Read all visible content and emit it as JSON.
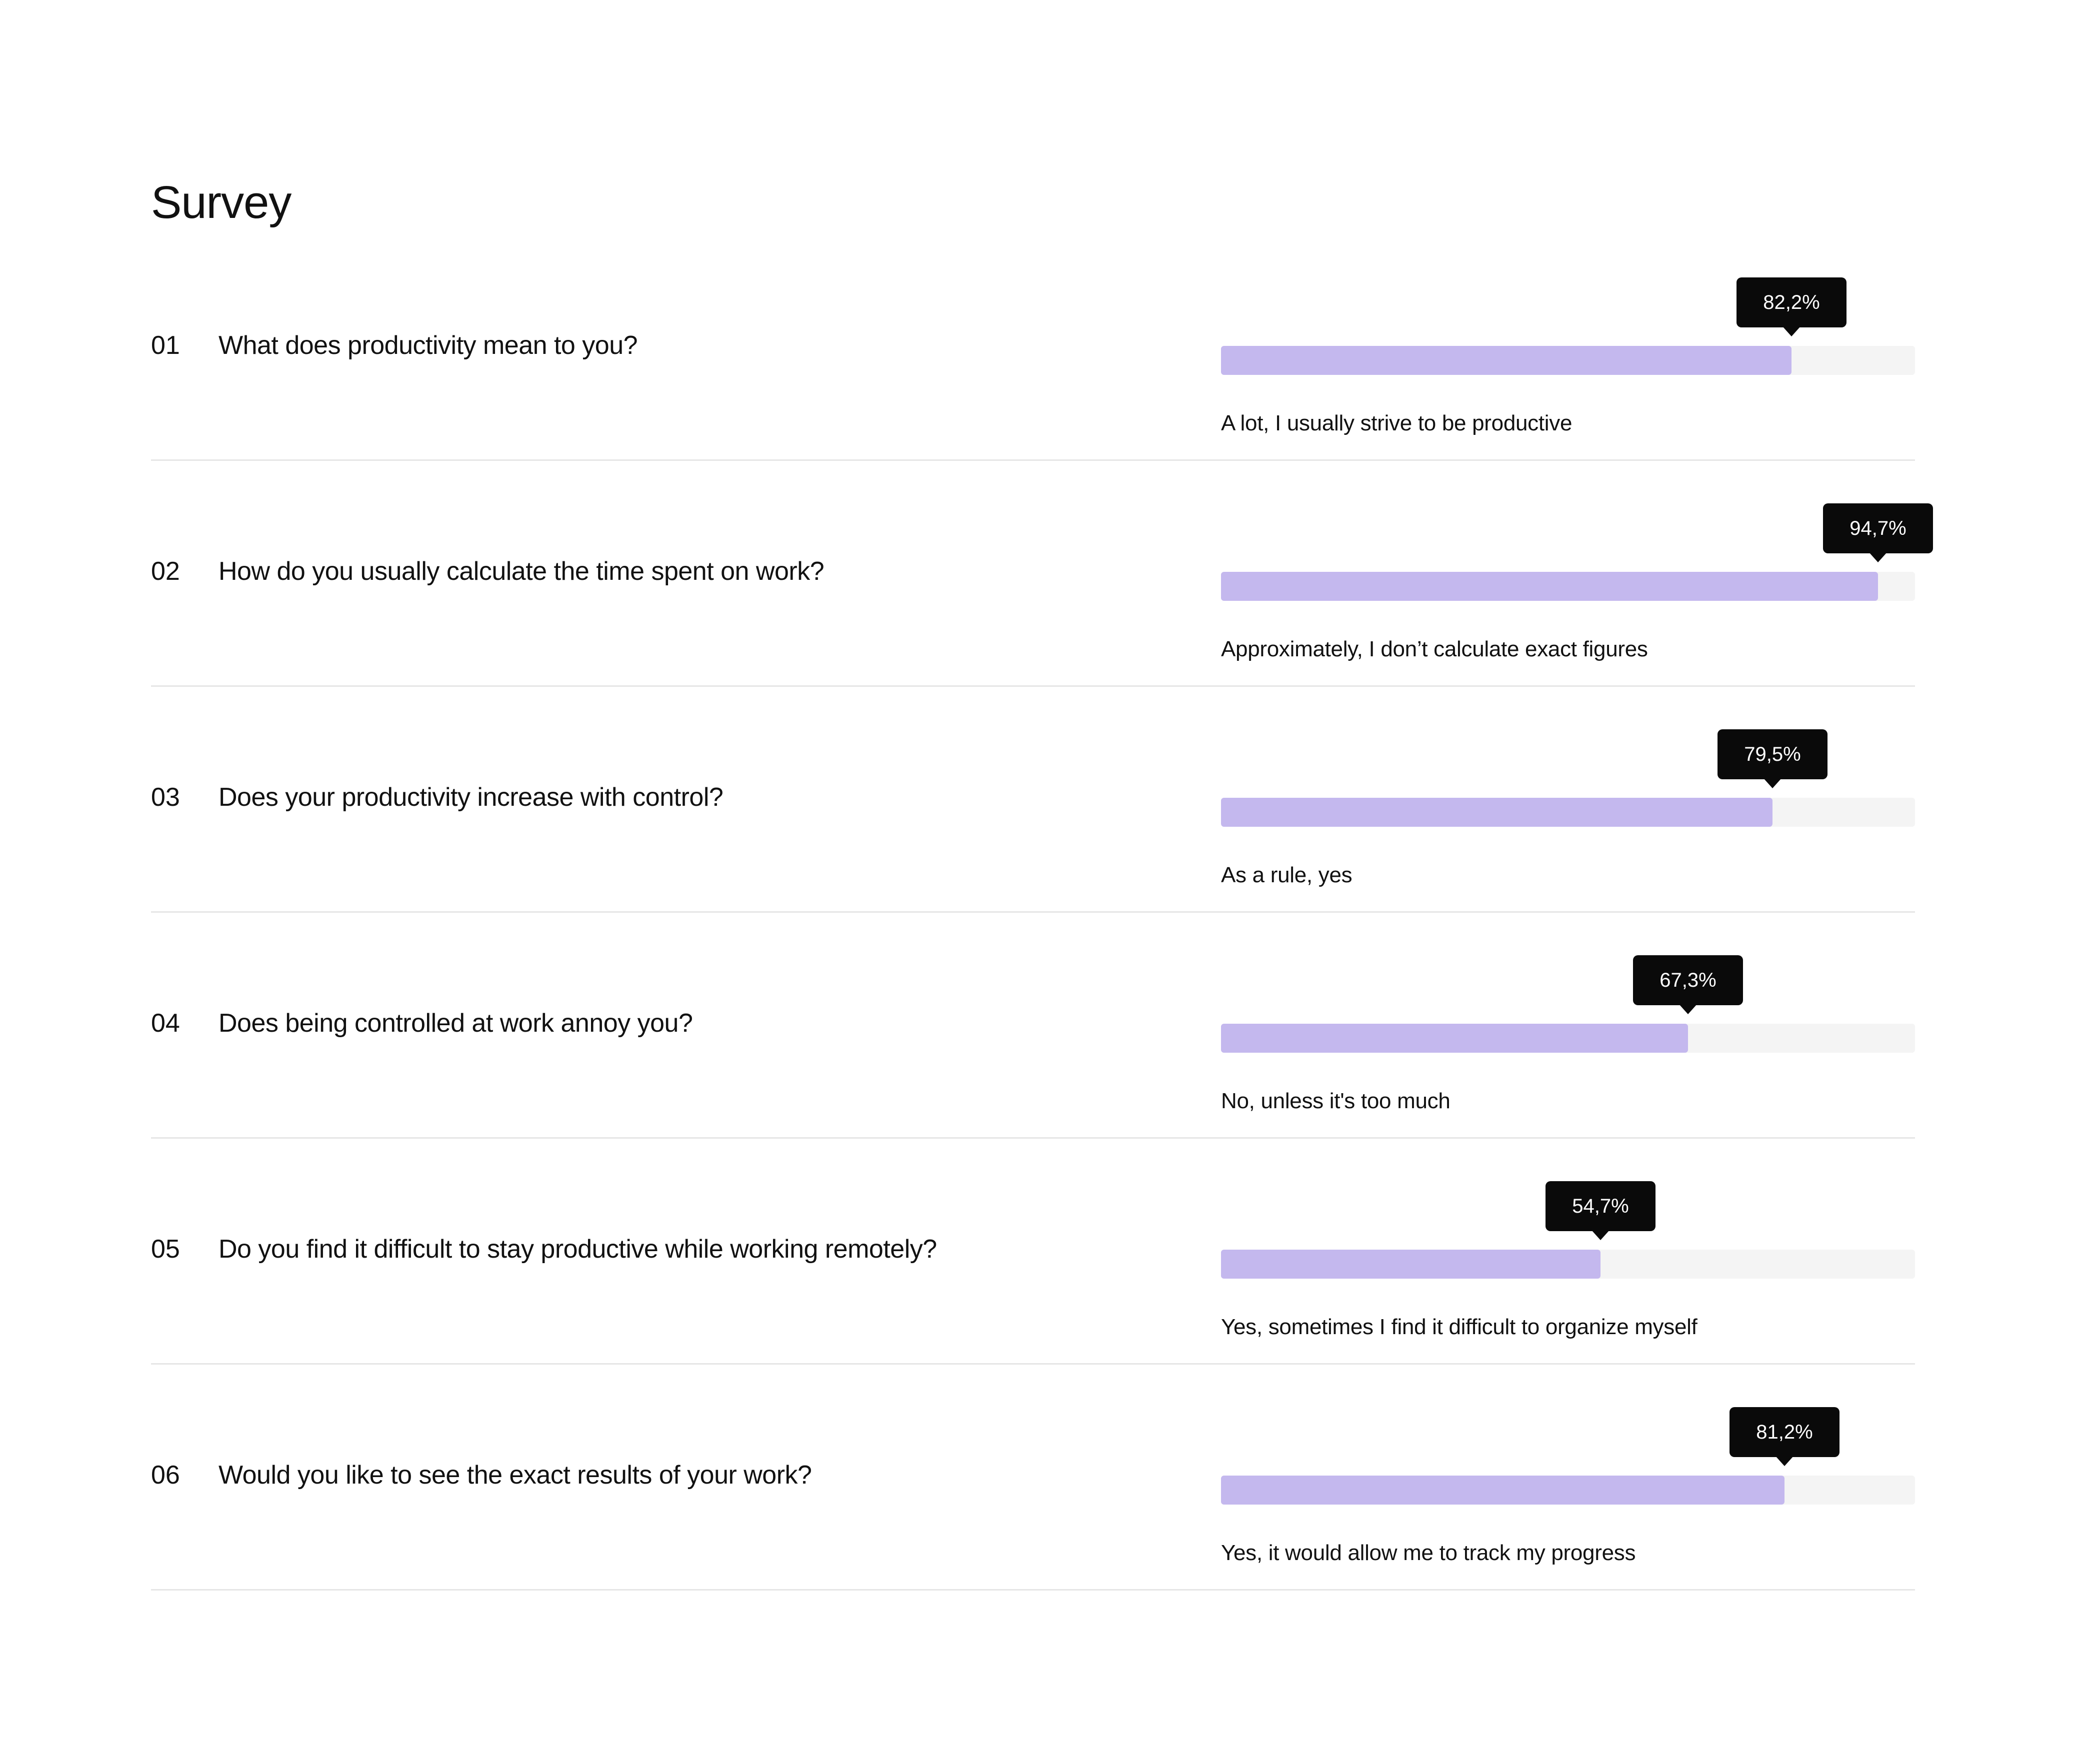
{
  "page": {
    "title": "Survey"
  },
  "colors": {
    "bar_fill": "#c4b8ee",
    "bar_track": "#f4f4f4",
    "tooltip_bg": "#0a0a0a",
    "divider": "#e6e6e6"
  },
  "chart_data": {
    "type": "bar",
    "orientation": "horizontal",
    "title": "Survey",
    "xlim": [
      0,
      100
    ],
    "unit": "%",
    "rows": [
      {
        "number": "01",
        "question": "What does productivity mean to you?",
        "answer": "A lot, I usually strive to be productive",
        "value": 82.2,
        "value_label": "82,2%"
      },
      {
        "number": "02",
        "question": "How do you usually calculate the time spent on work?",
        "answer": "Approximately, I don’t calculate exact figures",
        "value": 94.7,
        "value_label": "94,7%"
      },
      {
        "number": "03",
        "question": "Does your productivity increase with control?",
        "answer": "As a rule, yes",
        "value": 79.5,
        "value_label": "79,5%"
      },
      {
        "number": "04",
        "question": "Does being controlled at work annoy you?",
        "answer": "No, unless it's too much",
        "value": 67.3,
        "value_label": "67,3%"
      },
      {
        "number": "05",
        "question": "Do you find it difficult to stay productive while working remotely?",
        "answer": "Yes, sometimes I find it difficult to organize myself",
        "value": 54.7,
        "value_label": "54,7%"
      },
      {
        "number": "06",
        "question": "Would you like to see the exact results of your work?",
        "answer": "Yes, it would allow me to track my progress",
        "value": 81.2,
        "value_label": "81,2%"
      }
    ]
  }
}
